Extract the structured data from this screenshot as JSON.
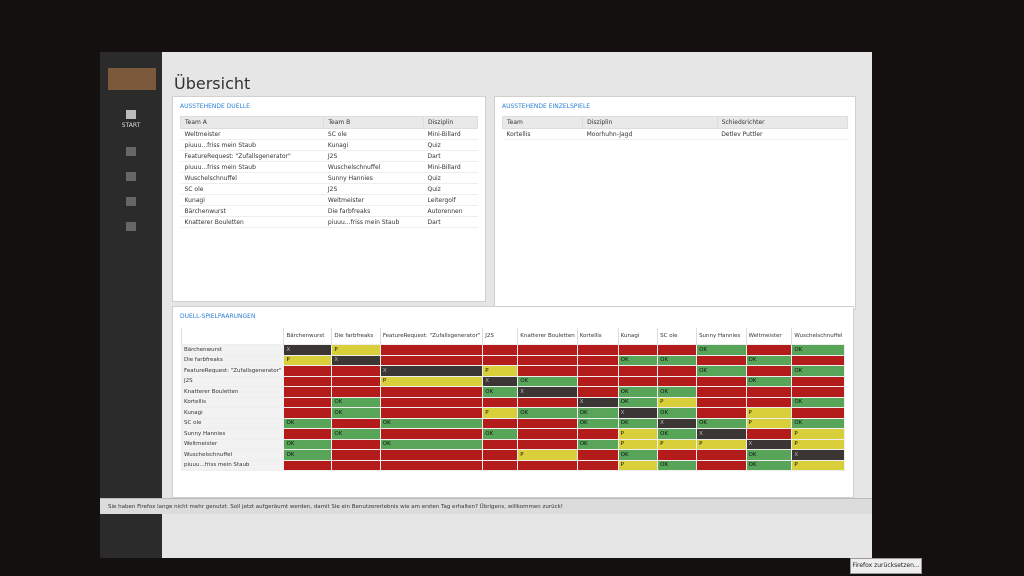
{
  "page": {
    "title": "Übersicht"
  },
  "sidebar": {
    "items": [
      "START"
    ]
  },
  "duelle": {
    "title": "AUSSTEHENDE DUELLE",
    "columns": [
      "Team A",
      "Team B",
      "Disziplin"
    ],
    "rows": [
      [
        "Weltmeister",
        "SC ole",
        "Mini-Billard"
      ],
      [
        "piuuu...friss mein Staub",
        "Kunagi",
        "Quiz"
      ],
      [
        "FeatureRequest: \"Zufallsgenerator\"",
        "J2S",
        "Dart"
      ],
      [
        "piuuu...friss mein Staub",
        "Wuschelschnuffel",
        "Mini-Billard"
      ],
      [
        "Wuschelschnuffel",
        "Sunny Hannies",
        "Quiz"
      ],
      [
        "SC ole",
        "J2S",
        "Quiz"
      ],
      [
        "Kunagi",
        "Weltmeister",
        "Leitergolf"
      ],
      [
        "Bärchenwurst",
        "Die farbfreaks",
        "Autorennen"
      ],
      [
        "Knatterer Bouletten",
        "piuuu...friss mein Staub",
        "Dart"
      ]
    ]
  },
  "einzelspiele": {
    "title": "AUSSTEHENDE EINZELSPIELE",
    "columns": [
      "Team",
      "Disziplin",
      "Schiedsrichter"
    ],
    "rows": [
      [
        "Kortellis",
        "Moorhuhn-Jagd",
        "Detlev Puttler"
      ]
    ]
  },
  "matrix": {
    "title": "DUELL-SPIELPAARUNGEN",
    "columns": [
      "Bärchenwurst",
      "Die farbfreaks",
      "FeatureRequest: \"Zufallsgenerator\"",
      "J2S",
      "Knatterer Bouletten",
      "Kortellis",
      "Kunagi",
      "SC ole",
      "Sunny Hannies",
      "Weltmeister",
      "Wuschelschnuffel"
    ],
    "rows": [
      "Bärchenwurst",
      "Die farbfreaks",
      "FeatureRequest: \"Zufallsgenerator\"",
      "J2S",
      "Knatterer Bouletten",
      "Kortellis",
      "Kunagi",
      "SC ole",
      "Sunny Hannies",
      "Weltmeister",
      "Wuschelschnuffel",
      "piuuu...friss mein Staub"
    ],
    "cells": [
      [
        "X",
        "P",
        null,
        null,
        null,
        null,
        null,
        null,
        "OK",
        null,
        "OK"
      ],
      [
        "P",
        "X",
        null,
        null,
        null,
        null,
        "OK",
        "OK",
        null,
        "OK",
        null
      ],
      [
        null,
        null,
        "X",
        "P",
        null,
        null,
        null,
        null,
        "OK",
        null,
        "OK"
      ],
      [
        null,
        null,
        "P",
        "X",
        "OK",
        null,
        null,
        null,
        null,
        "OK",
        null
      ],
      [
        null,
        null,
        null,
        "OK",
        "X",
        null,
        "OK",
        "OK",
        null,
        null,
        null
      ],
      [
        null,
        "OK",
        null,
        null,
        null,
        "X",
        "OK",
        "P",
        null,
        null,
        "OK"
      ],
      [
        null,
        "OK",
        null,
        "P",
        "OK",
        "OK",
        "X",
        "OK",
        null,
        "P",
        null
      ],
      [
        "OK",
        null,
        "OK",
        null,
        null,
        "OK",
        "OK",
        "X",
        "OK",
        "P",
        "OK"
      ],
      [
        null,
        "OK",
        null,
        "OK",
        null,
        null,
        "P",
        "OK",
        "X",
        null,
        "P"
      ],
      [
        "OK",
        null,
        "OK",
        null,
        null,
        "OK",
        "P",
        "P",
        "P",
        "X",
        "P"
      ],
      [
        "OK",
        null,
        null,
        null,
        "P",
        null,
        "OK",
        null,
        null,
        "OK",
        "X"
      ],
      [
        null,
        null,
        null,
        null,
        null,
        null,
        "P",
        "OK",
        null,
        "OK",
        "P"
      ]
    ]
  },
  "notification": {
    "text": "Sie haben Firefox lange nicht mehr genutzt. Soll jetzt aufgeräumt werden, damit Sie ein Benutzererlebnis wie am ersten Tag erhalten? Übrigens, willkommen zurück!",
    "button": "Firefox zurücksetzen..."
  }
}
